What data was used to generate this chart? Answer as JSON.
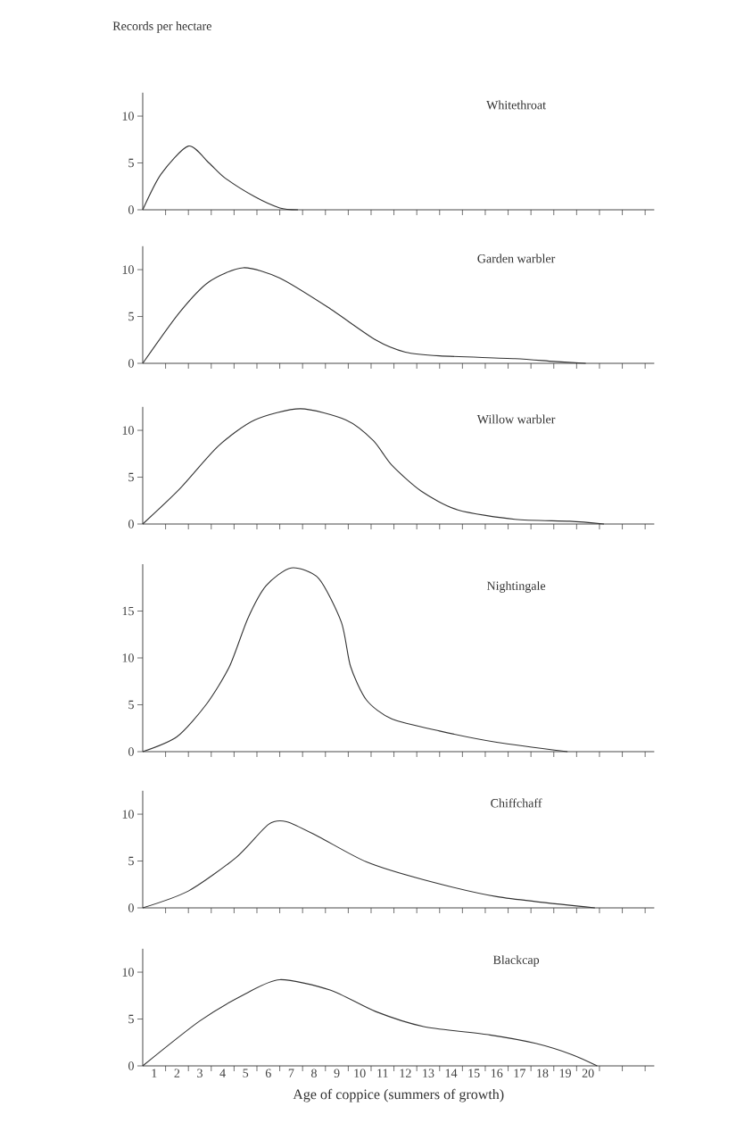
{
  "chart_data": [
    {
      "type": "line",
      "title": "Whitethroat",
      "ylabel": "Records per hectare",
      "color": "#333333",
      "tick_labels": "y",
      "xlim": [
        0,
        22.4
      ],
      "ylim": [
        0,
        12.5
      ],
      "yticks": [
        0,
        5,
        10
      ],
      "x": [
        0,
        0.8,
        2.0,
        2.9,
        3.6,
        4.9,
        6.0,
        6.8
      ],
      "values": [
        0,
        3.8,
        6.8,
        5.0,
        3.4,
        1.4,
        0.2,
        0
      ],
      "xticks": [
        {
          "value": 1,
          "label": null
        },
        {
          "value": 2,
          "label": null
        },
        {
          "value": 3,
          "label": null
        },
        {
          "value": 4,
          "label": null
        },
        {
          "value": 5,
          "label": null
        },
        {
          "value": 6,
          "label": null
        },
        {
          "value": 7,
          "label": null
        },
        {
          "value": 8,
          "label": null
        },
        {
          "value": 9,
          "label": null
        },
        {
          "value": 10,
          "label": null
        },
        {
          "value": 11,
          "label": null
        },
        {
          "value": 12,
          "label": null
        },
        {
          "value": 13,
          "label": null
        },
        {
          "value": 14,
          "label": null
        },
        {
          "value": 15,
          "label": null
        },
        {
          "value": 16,
          "label": null
        },
        {
          "value": 17,
          "label": null
        },
        {
          "value": 18,
          "label": null
        },
        {
          "value": 19,
          "label": null
        },
        {
          "value": 20,
          "label": null
        },
        {
          "value": 21,
          "label": null
        },
        {
          "value": 22,
          "label": null
        }
      ]
    },
    {
      "type": "line",
      "title": "Garden warbler",
      "color": "#333333",
      "tick_labels": "y",
      "xlim": [
        0,
        22.4
      ],
      "ylim": [
        0,
        12.5
      ],
      "yticks": [
        0,
        5,
        10
      ],
      "x": [
        0,
        1.6,
        2.9,
        4.4,
        6.0,
        8.1,
        10.2,
        11.5,
        13.0,
        16.3,
        18.0,
        19.4
      ],
      "values": [
        0,
        5.4,
        8.7,
        10.2,
        9.1,
        6.0,
        2.5,
        1.2,
        0.8,
        0.5,
        0.2,
        0
      ],
      "xticks": [
        {
          "value": 1,
          "label": null
        },
        {
          "value": 2,
          "label": null
        },
        {
          "value": 3,
          "label": null
        },
        {
          "value": 4,
          "label": null
        },
        {
          "value": 5,
          "label": null
        },
        {
          "value": 6,
          "label": null
        },
        {
          "value": 7,
          "label": null
        },
        {
          "value": 8,
          "label": null
        },
        {
          "value": 9,
          "label": null
        },
        {
          "value": 10,
          "label": null
        },
        {
          "value": 11,
          "label": null
        },
        {
          "value": 12,
          "label": null
        },
        {
          "value": 13,
          "label": null
        },
        {
          "value": 14,
          "label": null
        },
        {
          "value": 15,
          "label": null
        },
        {
          "value": 16,
          "label": null
        },
        {
          "value": 17,
          "label": null
        },
        {
          "value": 18,
          "label": null
        },
        {
          "value": 19,
          "label": null
        },
        {
          "value": 20,
          "label": null
        },
        {
          "value": 21,
          "label": null
        },
        {
          "value": 22,
          "label": null
        }
      ]
    },
    {
      "type": "line",
      "title": "Willow warbler",
      "color": "#333333",
      "tick_labels": "y",
      "xlim": [
        0,
        22.4
      ],
      "ylim": [
        0,
        12.5
      ],
      "yticks": [
        0,
        5,
        10
      ],
      "x": [
        0,
        1.6,
        3.3,
        4.9,
        6.9,
        8.9,
        10.1,
        10.9,
        12.2,
        13.8,
        16.3,
        18.7,
        20.2
      ],
      "values": [
        0,
        3.7,
        8.3,
        11.1,
        12.3,
        11.1,
        8.9,
        6.3,
        3.5,
        1.5,
        0.5,
        0.3,
        0
      ],
      "xticks": [
        {
          "value": 1,
          "label": null
        },
        {
          "value": 2,
          "label": null
        },
        {
          "value": 3,
          "label": null
        },
        {
          "value": 4,
          "label": null
        },
        {
          "value": 5,
          "label": null
        },
        {
          "value": 6,
          "label": null
        },
        {
          "value": 7,
          "label": null
        },
        {
          "value": 8,
          "label": null
        },
        {
          "value": 9,
          "label": null
        },
        {
          "value": 10,
          "label": null
        },
        {
          "value": 11,
          "label": null
        },
        {
          "value": 12,
          "label": null
        },
        {
          "value": 13,
          "label": null
        },
        {
          "value": 14,
          "label": null
        },
        {
          "value": 15,
          "label": null
        },
        {
          "value": 16,
          "label": null
        },
        {
          "value": 17,
          "label": null
        },
        {
          "value": 18,
          "label": null
        },
        {
          "value": 19,
          "label": null
        },
        {
          "value": 20,
          "label": null
        },
        {
          "value": 21,
          "label": null
        },
        {
          "value": 22,
          "label": null
        }
      ]
    },
    {
      "type": "line",
      "title": "Nightingale",
      "color": "#333333",
      "tick_labels": "y",
      "xlim": [
        0,
        22.4
      ],
      "ylim": [
        0,
        20
      ],
      "yticks": [
        0,
        5,
        10,
        15
      ],
      "x": [
        0,
        1.5,
        2.8,
        3.8,
        4.6,
        5.4,
        6.5,
        7.7,
        8.7,
        9.1,
        9.8,
        10.9,
        13.0,
        15.5,
        18.6
      ],
      "values": [
        0,
        1.6,
        5.1,
        9.1,
        14.2,
        17.7,
        19.6,
        18.5,
        13.8,
        9.1,
        5.5,
        3.5,
        2.2,
        1.0,
        0
      ],
      "xticks": [
        {
          "value": 1,
          "label": null
        },
        {
          "value": 2,
          "label": null
        },
        {
          "value": 3,
          "label": null
        },
        {
          "value": 4,
          "label": null
        },
        {
          "value": 5,
          "label": null
        },
        {
          "value": 6,
          "label": null
        },
        {
          "value": 7,
          "label": null
        },
        {
          "value": 8,
          "label": null
        },
        {
          "value": 9,
          "label": null
        },
        {
          "value": 10,
          "label": null
        },
        {
          "value": 11,
          "label": null
        },
        {
          "value": 12,
          "label": null
        },
        {
          "value": 13,
          "label": null
        },
        {
          "value": 14,
          "label": null
        },
        {
          "value": 15,
          "label": null
        },
        {
          "value": 16,
          "label": null
        },
        {
          "value": 17,
          "label": null
        },
        {
          "value": 18,
          "label": null
        },
        {
          "value": 19,
          "label": null
        },
        {
          "value": 20,
          "label": null
        },
        {
          "value": 21,
          "label": null
        },
        {
          "value": 22,
          "label": null
        }
      ]
    },
    {
      "type": "line",
      "title": "Chiffchaff",
      "color": "#333333",
      "tick_labels": "y",
      "xlim": [
        0,
        22.4
      ],
      "ylim": [
        0,
        12.5
      ],
      "yticks": [
        0,
        5,
        10
      ],
      "x": [
        0,
        2.0,
        4.1,
        5.5,
        6.3,
        7.7,
        9.8,
        12.3,
        15.5,
        19.8
      ],
      "values": [
        0,
        1.8,
        5.4,
        8.9,
        9.2,
        7.6,
        4.9,
        3.0,
        1.2,
        0
      ],
      "xticks": [
        {
          "value": 1,
          "label": null
        },
        {
          "value": 2,
          "label": null
        },
        {
          "value": 3,
          "label": null
        },
        {
          "value": 4,
          "label": null
        },
        {
          "value": 5,
          "label": null
        },
        {
          "value": 6,
          "label": null
        },
        {
          "value": 7,
          "label": null
        },
        {
          "value": 8,
          "label": null
        },
        {
          "value": 9,
          "label": null
        },
        {
          "value": 10,
          "label": null
        },
        {
          "value": 11,
          "label": null
        },
        {
          "value": 12,
          "label": null
        },
        {
          "value": 13,
          "label": null
        },
        {
          "value": 14,
          "label": null
        },
        {
          "value": 15,
          "label": null
        },
        {
          "value": 16,
          "label": null
        },
        {
          "value": 17,
          "label": null
        },
        {
          "value": 18,
          "label": null
        },
        {
          "value": 19,
          "label": null
        },
        {
          "value": 20,
          "label": null
        },
        {
          "value": 21,
          "label": null
        },
        {
          "value": 22,
          "label": null
        }
      ]
    },
    {
      "type": "line",
      "title": "Blackcap",
      "xlabel": "Age of coppice (summers of growth)",
      "color": "#333333",
      "xlim": [
        0,
        22.4
      ],
      "ylim": [
        0,
        12.5
      ],
      "yticks": [
        0,
        5,
        10
      ],
      "x": [
        0,
        2.5,
        4.5,
        6.0,
        8.2,
        10.2,
        12.3,
        15.2,
        17.2,
        18.8,
        19.9
      ],
      "values": [
        0,
        4.8,
        7.7,
        9.2,
        8.1,
        5.8,
        4.2,
        3.3,
        2.4,
        1.2,
        0
      ],
      "xticks": [
        {
          "value": 1,
          "label": null
        },
        {
          "value": 2,
          "label": null
        },
        {
          "value": 3,
          "label": null
        },
        {
          "value": 4,
          "label": null
        },
        {
          "value": 5,
          "label": null
        },
        {
          "value": 6,
          "label": null
        },
        {
          "value": 7,
          "label": null
        },
        {
          "value": 8,
          "label": null
        },
        {
          "value": 9,
          "label": null
        },
        {
          "value": 10,
          "label": null
        },
        {
          "value": 11,
          "label": null
        },
        {
          "value": 12,
          "label": null
        },
        {
          "value": 13,
          "label": null
        },
        {
          "value": 14,
          "label": null
        },
        {
          "value": 15,
          "label": null
        },
        {
          "value": 16,
          "label": null
        },
        {
          "value": 17,
          "label": null
        },
        {
          "value": 18,
          "label": null
        },
        {
          "value": 19,
          "label": null
        },
        {
          "value": 20,
          "label": null
        },
        {
          "value": 21,
          "label": null
        },
        {
          "value": 22,
          "label": null
        },
        {
          "value": 0.5,
          "label": "1"
        },
        {
          "value": 1.5,
          "label": "2"
        },
        {
          "value": 2.5,
          "label": "3"
        },
        {
          "value": 3.5,
          "label": "4"
        },
        {
          "value": 4.5,
          "label": "5"
        },
        {
          "value": 5.5,
          "label": "6"
        },
        {
          "value": 6.5,
          "label": "7"
        },
        {
          "value": 7.5,
          "label": "8"
        },
        {
          "value": 8.5,
          "label": "9"
        },
        {
          "value": 9.5,
          "label": "10"
        },
        {
          "value": 10.5,
          "label": "11"
        },
        {
          "value": 11.5,
          "label": "12"
        },
        {
          "value": 12.5,
          "label": "13"
        },
        {
          "value": 13.5,
          "label": "14"
        },
        {
          "value": 14.5,
          "label": "15"
        },
        {
          "value": 15.5,
          "label": "16"
        },
        {
          "value": 16.5,
          "label": "17"
        },
        {
          "value": 17.5,
          "label": "18"
        },
        {
          "value": 18.5,
          "label": "19"
        },
        {
          "value": 19.5,
          "label": "20"
        }
      ]
    }
  ]
}
